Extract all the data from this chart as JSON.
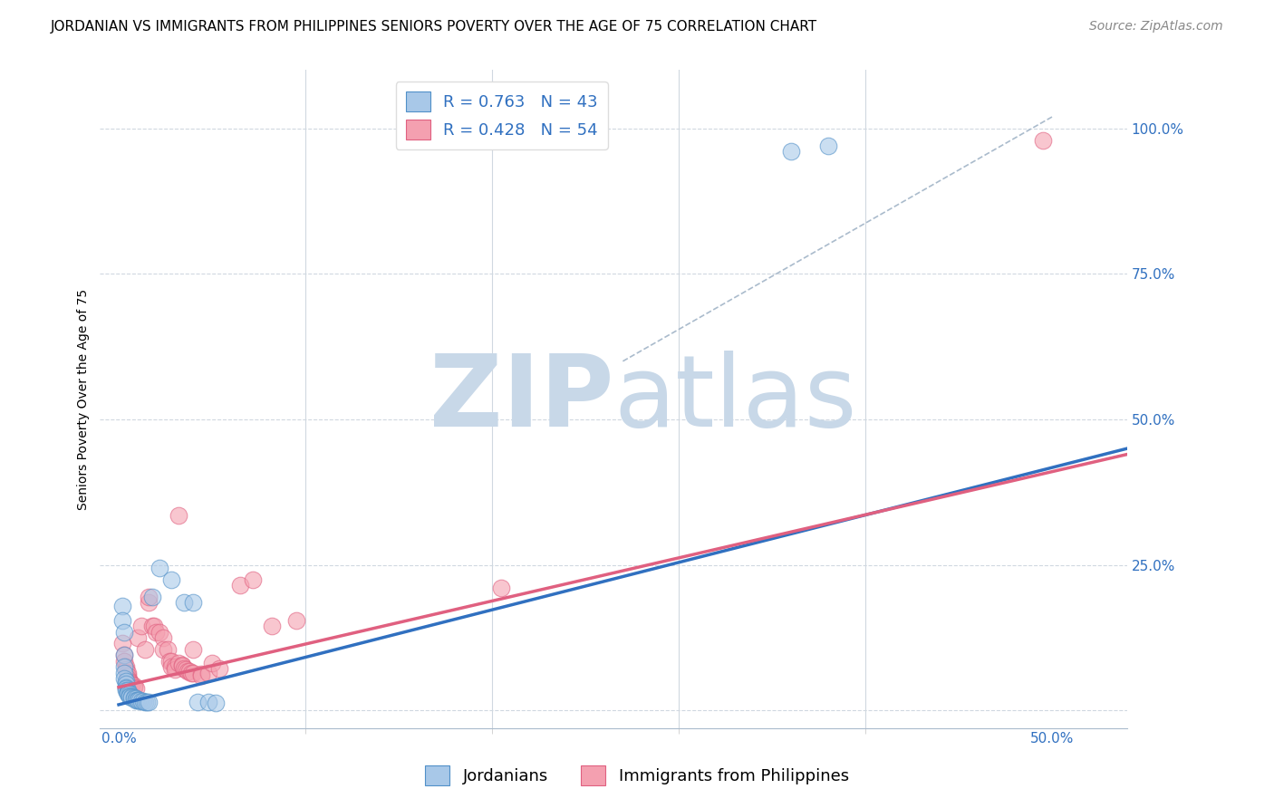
{
  "title": "JORDANIAN VS IMMIGRANTS FROM PHILIPPINES SENIORS POVERTY OVER THE AGE OF 75 CORRELATION CHART",
  "source": "Source: ZipAtlas.com",
  "xlabel_ticks": [
    0.0,
    0.5
  ],
  "xlabel_tick_labels": [
    "0.0%",
    "50.0%"
  ],
  "ylabel_ticks": [
    0.0,
    0.25,
    0.5,
    0.75,
    1.0
  ],
  "ylabel_tick_labels": [
    "",
    "25.0%",
    "50.0%",
    "75.0%",
    "100.0%"
  ],
  "ylabel_label": "Seniors Poverty Over the Age of 75",
  "xmin": -0.01,
  "xmax": 0.54,
  "ymin": -0.03,
  "ymax": 1.1,
  "legend_entry1": "R = 0.763   N = 43",
  "legend_entry2": "R = 0.428   N = 54",
  "legend_label1": "Jordanians",
  "legend_label2": "Immigrants from Philippines",
  "blue_color": "#a8c8e8",
  "pink_color": "#f4a0b0",
  "blue_edge_color": "#5090c8",
  "pink_edge_color": "#e06080",
  "blue_line_color": "#3070c0",
  "pink_line_color": "#e06080",
  "blue_scatter": [
    [
      0.002,
      0.18
    ],
    [
      0.002,
      0.155
    ],
    [
      0.003,
      0.135
    ],
    [
      0.003,
      0.095
    ],
    [
      0.003,
      0.075
    ],
    [
      0.003,
      0.065
    ],
    [
      0.003,
      0.055
    ],
    [
      0.004,
      0.05
    ],
    [
      0.004,
      0.045
    ],
    [
      0.004,
      0.04
    ],
    [
      0.004,
      0.038
    ],
    [
      0.004,
      0.035
    ],
    [
      0.005,
      0.034
    ],
    [
      0.005,
      0.032
    ],
    [
      0.005,
      0.03
    ],
    [
      0.005,
      0.028
    ],
    [
      0.006,
      0.028
    ],
    [
      0.006,
      0.026
    ],
    [
      0.006,
      0.024
    ],
    [
      0.007,
      0.024
    ],
    [
      0.007,
      0.022
    ],
    [
      0.008,
      0.022
    ],
    [
      0.008,
      0.02
    ],
    [
      0.009,
      0.02
    ],
    [
      0.009,
      0.018
    ],
    [
      0.01,
      0.018
    ],
    [
      0.01,
      0.017
    ],
    [
      0.011,
      0.017
    ],
    [
      0.012,
      0.016
    ],
    [
      0.013,
      0.016
    ],
    [
      0.014,
      0.015
    ],
    [
      0.015,
      0.015
    ],
    [
      0.016,
      0.015
    ],
    [
      0.018,
      0.195
    ],
    [
      0.022,
      0.245
    ],
    [
      0.028,
      0.225
    ],
    [
      0.035,
      0.185
    ],
    [
      0.04,
      0.185
    ],
    [
      0.042,
      0.015
    ],
    [
      0.048,
      0.014
    ],
    [
      0.052,
      0.013
    ],
    [
      0.38,
      0.97
    ],
    [
      0.36,
      0.96
    ]
  ],
  "pink_scatter": [
    [
      0.002,
      0.115
    ],
    [
      0.003,
      0.095
    ],
    [
      0.003,
      0.085
    ],
    [
      0.004,
      0.075
    ],
    [
      0.004,
      0.07
    ],
    [
      0.005,
      0.065
    ],
    [
      0.005,
      0.06
    ],
    [
      0.005,
      0.055
    ],
    [
      0.006,
      0.05
    ],
    [
      0.006,
      0.048
    ],
    [
      0.007,
      0.046
    ],
    [
      0.007,
      0.044
    ],
    [
      0.008,
      0.042
    ],
    [
      0.008,
      0.04
    ],
    [
      0.009,
      0.038
    ],
    [
      0.01,
      0.125
    ],
    [
      0.012,
      0.145
    ],
    [
      0.014,
      0.105
    ],
    [
      0.016,
      0.185
    ],
    [
      0.016,
      0.195
    ],
    [
      0.018,
      0.145
    ],
    [
      0.019,
      0.145
    ],
    [
      0.02,
      0.135
    ],
    [
      0.022,
      0.135
    ],
    [
      0.024,
      0.125
    ],
    [
      0.024,
      0.105
    ],
    [
      0.026,
      0.105
    ],
    [
      0.027,
      0.085
    ],
    [
      0.028,
      0.085
    ],
    [
      0.028,
      0.075
    ],
    [
      0.03,
      0.075
    ],
    [
      0.03,
      0.07
    ],
    [
      0.032,
      0.335
    ],
    [
      0.032,
      0.082
    ],
    [
      0.034,
      0.078
    ],
    [
      0.034,
      0.076
    ],
    [
      0.035,
      0.072
    ],
    [
      0.036,
      0.07
    ],
    [
      0.037,
      0.068
    ],
    [
      0.038,
      0.068
    ],
    [
      0.039,
      0.065
    ],
    [
      0.04,
      0.105
    ],
    [
      0.04,
      0.065
    ],
    [
      0.044,
      0.062
    ],
    [
      0.044,
      0.06
    ],
    [
      0.048,
      0.065
    ],
    [
      0.05,
      0.082
    ],
    [
      0.054,
      0.072
    ],
    [
      0.065,
      0.215
    ],
    [
      0.072,
      0.225
    ],
    [
      0.082,
      0.145
    ],
    [
      0.095,
      0.155
    ],
    [
      0.205,
      0.21
    ],
    [
      0.495,
      0.98
    ]
  ],
  "blue_line_x": [
    0.0,
    0.54
  ],
  "blue_line_y": [
    0.01,
    0.45
  ],
  "pink_line_x": [
    0.0,
    0.54
  ],
  "pink_line_y": [
    0.04,
    0.44
  ],
  "diag_line_x": [
    0.27,
    0.5
  ],
  "diag_line_y": [
    0.6,
    1.02
  ],
  "watermark_zip": "ZIP",
  "watermark_atlas": "atlas",
  "watermark_color": "#c8d8e8",
  "watermark_fontsize": 80,
  "title_fontsize": 11,
  "axis_label_fontsize": 10,
  "tick_fontsize": 11,
  "legend_fontsize": 13,
  "source_fontsize": 10
}
